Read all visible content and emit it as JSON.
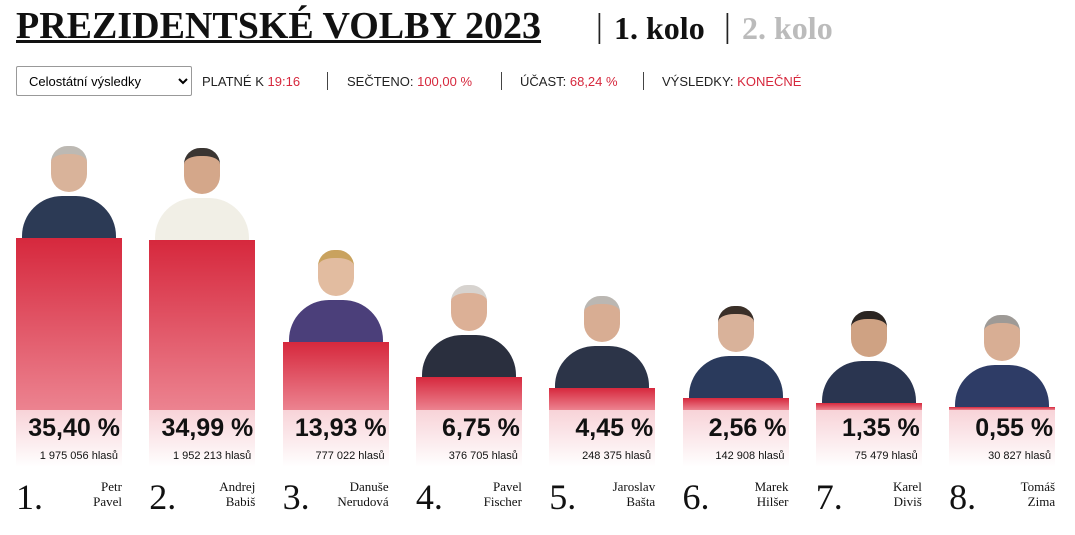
{
  "header": {
    "title": "PREZIDENTSKÉ VOLBY 2023",
    "round1": "1. kolo",
    "round2": "2. kolo",
    "select": "Celostátní výsledky",
    "valid_label": "PLATNÉ K",
    "valid_value": "19:16",
    "counted_label": "SEČTENO:",
    "counted_value": "100,00 %",
    "turnout_label": "ÚČAST:",
    "turnout_value": "68,24 %",
    "results_label": "VÝSLEDKY:",
    "results_value": "KONEČNÉ"
  },
  "chart_data": {
    "type": "bar",
    "categories": [
      "Petr Pavel",
      "Andrej Babiš",
      "Danuše Nerudová",
      "Pavel Fischer",
      "Jaroslav Bašta",
      "Marek Hilšer",
      "Karel Diviš",
      "Tomáš Zima"
    ],
    "ranks": [
      "1.",
      "2.",
      "3.",
      "4.",
      "5.",
      "6.",
      "7.",
      "8."
    ],
    "values": [
      35.4,
      34.99,
      13.93,
      6.75,
      4.45,
      2.56,
      1.35,
      0.55
    ],
    "value_labels": [
      "35,40 %",
      "34,99 %",
      "13,93 %",
      "6,75 %",
      "4,45 %",
      "2,56 %",
      "1,35 %",
      "0,55 %"
    ],
    "votes": [
      1975056,
      1952213,
      777022,
      376705,
      248375,
      142908,
      75479,
      30827
    ],
    "vote_labels": [
      "1 975 056 hlasů",
      "1 952 213 hlasů",
      "777 022 hlasů",
      "376 705 hlasů",
      "248 375 hlasů",
      "142 908 hlasů",
      "75 479 hlasů",
      "30 827 hlasů"
    ],
    "color": "#d6283d"
  }
}
